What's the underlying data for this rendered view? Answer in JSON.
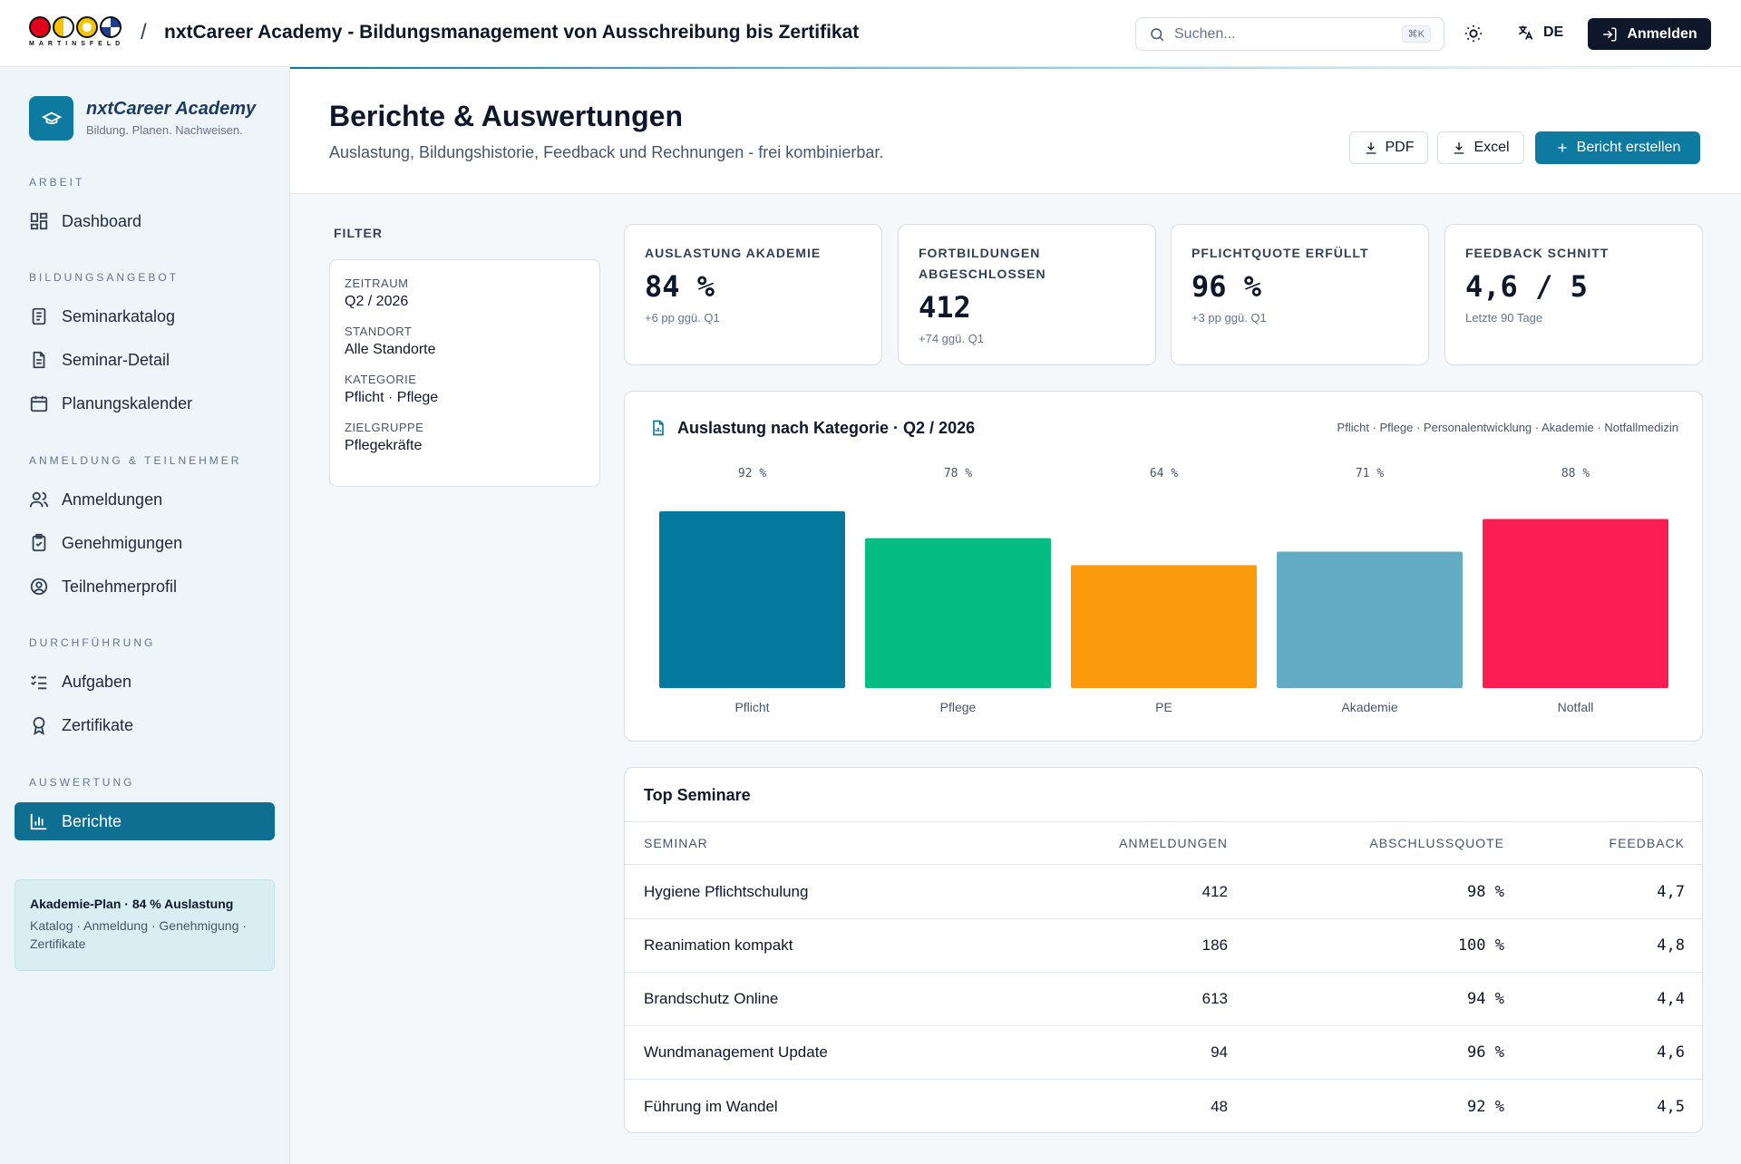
{
  "topbar": {
    "logo_text": "MARTINSFELD",
    "separator": "/",
    "title": "nxtCareer Academy - Bildungsmanagement von Ausschreibung bis Zertifikat",
    "search_placeholder": "Suchen...",
    "search_shortcut": "⌘K",
    "language": "DE",
    "login_label": "Anmelden"
  },
  "sidebar": {
    "brand_title": "nxtCareer Academy",
    "brand_subtitle": "Bildung. Planen. Nachweisen.",
    "sections": [
      {
        "title": "ARBEIT",
        "items": [
          {
            "label": "Dashboard",
            "icon": "dashboard-icon"
          }
        ]
      },
      {
        "title": "BILDUNGSANGEBOT",
        "items": [
          {
            "label": "Seminarkatalog",
            "icon": "catalog-icon"
          },
          {
            "label": "Seminar-Detail",
            "icon": "document-icon"
          },
          {
            "label": "Planungskalender",
            "icon": "calendar-icon"
          }
        ]
      },
      {
        "title": "ANMELDUNG & TEILNEHMER",
        "items": [
          {
            "label": "Anmeldungen",
            "icon": "users-icon"
          },
          {
            "label": "Genehmigungen",
            "icon": "clipboard-check-icon"
          },
          {
            "label": "Teilnehmerprofil",
            "icon": "user-circle-icon"
          }
        ]
      },
      {
        "title": "DURCHFÜHRUNG",
        "items": [
          {
            "label": "Aufgaben",
            "icon": "checklist-icon"
          },
          {
            "label": "Zertifikate",
            "icon": "award-icon"
          }
        ]
      },
      {
        "title": "AUSWERTUNG",
        "items": [
          {
            "label": "Berichte",
            "icon": "bar-chart-icon",
            "active": true
          }
        ]
      }
    ],
    "plan": {
      "title": "Akademie-Plan · 84 % Auslastung",
      "subtitle": "Katalog · Anmeldung · Genehmigung · Zertifikate"
    }
  },
  "header": {
    "title": "Berichte & Auswertungen",
    "subtitle": "Auslastung, Bildungshistorie, Feedback und Rechnungen - frei kombinierbar.",
    "pdf_label": "PDF",
    "excel_label": "Excel",
    "create_label": "Bericht erstellen"
  },
  "filter": {
    "label": "FILTER",
    "fields": [
      {
        "key": "ZEITRAUM",
        "value": "Q2 / 2026"
      },
      {
        "key": "STANDORT",
        "value": "Alle Standorte"
      },
      {
        "key": "KATEGORIE",
        "value": "Pflicht · Pflege"
      },
      {
        "key": "ZIELGRUPPE",
        "value": "Pflegekräfte"
      }
    ]
  },
  "kpis": [
    {
      "label": "AUSLASTUNG AKADEMIE",
      "value": "84 %",
      "sub": "+6 pp ggü. Q1"
    },
    {
      "label": "FORTBILDUNGEN ABGESCHLOSSEN",
      "value": "412",
      "sub": "+74 ggü. Q1"
    },
    {
      "label": "PFLICHTQUOTE ERFÜLLT",
      "value": "96 %",
      "sub": "+3 pp ggü. Q1"
    },
    {
      "label": "FEEDBACK SCHNITT",
      "value": "4,6 / 5",
      "sub": "Letzte 90 Tage"
    }
  ],
  "chart": {
    "title": "Auslastung nach Kategorie · Q2 / 2026",
    "legend": "Pflicht · Pflege · Personalentwicklung · Akademie · Notfallmedizin"
  },
  "chart_data": {
    "type": "bar",
    "title": "Auslastung nach Kategorie · Q2 / 2026",
    "categories": [
      "Pflicht",
      "Pflege",
      "PE",
      "Akademie",
      "Notfall"
    ],
    "values": [
      92,
      78,
      64,
      71,
      88
    ],
    "value_labels": [
      "92 %",
      "78 %",
      "64 %",
      "71 %",
      "88 %"
    ],
    "colors": [
      "#05789e",
      "#05bd82",
      "#fb9a0a",
      "#63acc4",
      "#fb1e55"
    ],
    "ylim": [
      0,
      100
    ],
    "grid": false
  },
  "table": {
    "title": "Top Seminare",
    "columns": [
      "SEMINAR",
      "ANMELDUNGEN",
      "ABSCHLUSSQUOTE",
      "FEEDBACK"
    ],
    "rows": [
      [
        "Hygiene Pflichtschulung",
        "412",
        "98 %",
        "4,7"
      ],
      [
        "Reanimation kompakt",
        "186",
        "100 %",
        "4,8"
      ],
      [
        "Brandschutz Online",
        "613",
        "94 %",
        "4,4"
      ],
      [
        "Wundmanagement Update",
        "94",
        "96 %",
        "4,6"
      ],
      [
        "Führung im Wandel",
        "48",
        "92 %",
        "4,5"
      ]
    ]
  }
}
